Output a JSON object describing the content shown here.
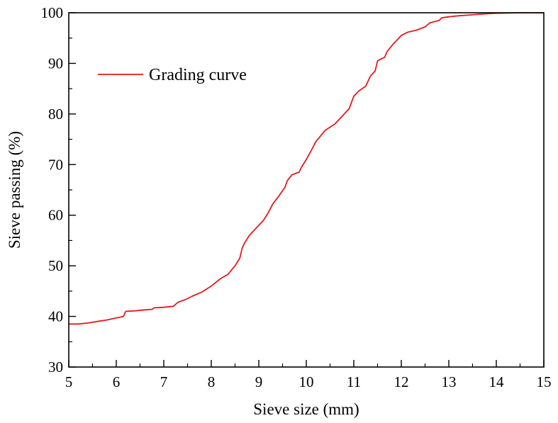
{
  "chart_data": {
    "type": "line",
    "xlabel": "Sieve size (mm)",
    "ylabel": "Sieve passing (%)",
    "xlim": [
      5,
      15
    ],
    "ylim": [
      30,
      100
    ],
    "x_ticks": [
      "5",
      "6",
      "7",
      "8",
      "9",
      "10",
      "11",
      "12",
      "13",
      "14",
      "15"
    ],
    "y_ticks": [
      "30",
      "40",
      "50",
      "60",
      "70",
      "80",
      "90",
      "100"
    ],
    "grid": false,
    "legend_position": "top-left",
    "series": [
      {
        "name": "Grading curve",
        "color": "#e41a1c",
        "x": [
          5.0,
          5.2,
          5.4,
          5.6,
          5.8,
          6.0,
          6.15,
          6.2,
          6.4,
          6.6,
          6.75,
          6.8,
          7.0,
          7.2,
          7.3,
          7.45,
          7.6,
          7.8,
          8.0,
          8.2,
          8.35,
          8.5,
          8.6,
          8.65,
          8.7,
          8.8,
          8.9,
          9.0,
          9.1,
          9.2,
          9.3,
          9.4,
          9.55,
          9.6,
          9.7,
          9.85,
          9.9,
          10.0,
          10.1,
          10.2,
          10.4,
          10.6,
          10.75,
          10.85,
          10.9,
          11.0,
          11.1,
          11.25,
          11.35,
          11.45,
          11.5,
          11.6,
          11.65,
          11.7,
          11.8,
          12.0,
          12.1,
          12.15,
          12.3,
          12.5,
          12.6,
          12.8,
          12.85,
          13.0,
          13.2,
          13.5,
          13.8,
          14.0,
          14.5,
          15.0
        ],
        "values": [
          38.5,
          38.5,
          38.7,
          39.0,
          39.3,
          39.7,
          40.0,
          41.0,
          41.1,
          41.3,
          41.4,
          41.7,
          41.8,
          42.0,
          42.8,
          43.3,
          44.0,
          44.8,
          46.0,
          47.5,
          48.3,
          50.0,
          51.5,
          53.5,
          54.5,
          56.0,
          57.0,
          58.0,
          59.0,
          60.5,
          62.3,
          63.5,
          65.5,
          66.8,
          68.0,
          68.5,
          69.5,
          71.0,
          72.7,
          74.5,
          76.8,
          78.0,
          79.5,
          80.5,
          81.0,
          83.5,
          84.5,
          85.5,
          87.5,
          88.5,
          90.5,
          91.0,
          91.2,
          92.3,
          93.5,
          95.5,
          96.0,
          96.2,
          96.5,
          97.2,
          98.0,
          98.5,
          99.0,
          99.2,
          99.4,
          99.6,
          99.8,
          99.9,
          100.0,
          100.0
        ]
      }
    ]
  }
}
